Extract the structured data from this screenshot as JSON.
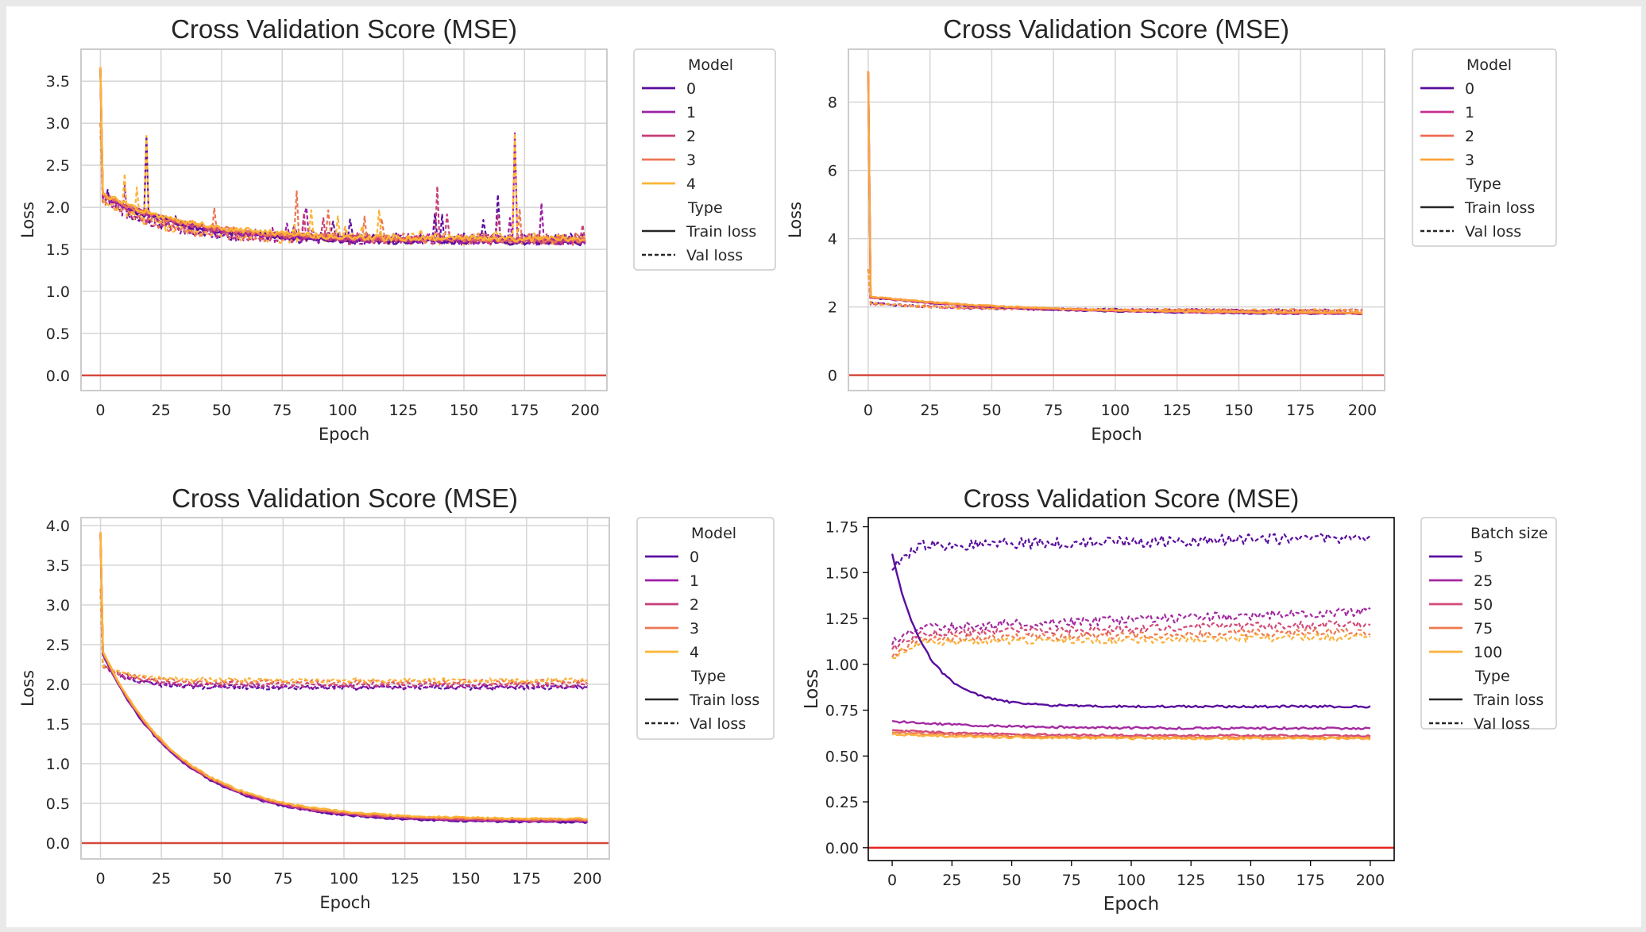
{
  "colors": {
    "page_background": "#e9e9e9",
    "panel_background": "#ffffff",
    "zero_line": "#d6483c",
    "zero_line_bright": "#e8241e",
    "grid": "#d5d5d5",
    "legend_border": "#cccccc"
  },
  "chart_data": [
    {
      "type": "line",
      "style": "seaborn-whitegrid",
      "title": "Cross Validation Score (MSE)",
      "xlabel": "Epoch",
      "ylabel": "Loss",
      "xlim": [
        -8,
        209
      ],
      "ylim": [
        -0.18,
        3.88
      ],
      "xticks": [
        0,
        25,
        50,
        75,
        100,
        125,
        150,
        175,
        200
      ],
      "yticks": [
        0.0,
        0.5,
        1.0,
        1.5,
        2.0,
        2.5,
        3.0,
        3.5
      ],
      "ytick_labels": [
        "0.0",
        "0.5",
        "1.0",
        "1.5",
        "2.0",
        "2.5",
        "3.0",
        "3.5"
      ],
      "grid": true,
      "reference_line": {
        "y": 0
      },
      "legend": {
        "placement": "outside-right",
        "hue_title": "Model",
        "hue": [
          {
            "label": "0",
            "color": "#5a0d9e"
          },
          {
            "label": "1",
            "color": "#9c1fa6"
          },
          {
            "label": "2",
            "color": "#c83e78"
          },
          {
            "label": "3",
            "color": "#ec7653"
          },
          {
            "label": "4",
            "color": "#fcb435"
          }
        ],
        "style_title": "Type",
        "styles": [
          {
            "label": "Train loss",
            "dash": "solid"
          },
          {
            "label": "Val loss",
            "dash": "dashed"
          }
        ]
      },
      "series_profiles": {
        "train": {
          "start": 3.65,
          "after_first": 2.15,
          "end": 1.6,
          "decay_epochs": 35,
          "noise": 0.035
        },
        "val": {
          "start": 3.0,
          "after_first": 2.1,
          "end": 1.62,
          "decay_epochs": 25,
          "noise": 0.07,
          "spikes": [
            [
              19,
              2.85
            ],
            [
              171,
              2.88
            ],
            [
              139,
              2.25
            ],
            [
              81,
              2.2
            ],
            [
              10,
              2.4
            ],
            [
              164,
              2.15
            ],
            [
              182,
              2.05
            ]
          ]
        }
      }
    },
    {
      "type": "line",
      "style": "seaborn-whitegrid",
      "title": "Cross Validation Score (MSE)",
      "xlabel": "Epoch",
      "ylabel": "Loss",
      "xlim": [
        -8,
        209
      ],
      "ylim": [
        -0.45,
        9.55
      ],
      "xticks": [
        0,
        25,
        50,
        75,
        100,
        125,
        150,
        175,
        200
      ],
      "yticks": [
        0,
        2,
        4,
        6,
        8
      ],
      "ytick_labels": [
        "0",
        "2",
        "4",
        "6",
        "8"
      ],
      "grid": true,
      "reference_line": {
        "y": 0
      },
      "legend": {
        "placement": "outside-right",
        "hue_title": "Model",
        "hue": [
          {
            "label": "0",
            "color": "#5a0d9e"
          },
          {
            "label": "1",
            "color": "#c72f8f"
          },
          {
            "label": "2",
            "color": "#ef6b53"
          },
          {
            "label": "3",
            "color": "#fba43a"
          }
        ],
        "style_title": "Type",
        "styles": [
          {
            "label": "Train loss",
            "dash": "solid"
          },
          {
            "label": "Val loss",
            "dash": "dashed"
          }
        ]
      },
      "series_profiles": {
        "train": {
          "start": 8.9,
          "after_first": 2.3,
          "end": 1.8,
          "decay_epochs": 60,
          "noise": 0.02
        },
        "val": {
          "start": 3.1,
          "after_first": 2.1,
          "end": 1.9,
          "decay_epochs": 40,
          "noise": 0.035,
          "spikes": []
        }
      }
    },
    {
      "type": "line",
      "style": "seaborn-whitegrid",
      "title": "Cross Validation Score (MSE)",
      "xlabel": "Epoch",
      "ylabel": "Loss",
      "xlim": [
        -8,
        209
      ],
      "ylim": [
        -0.2,
        4.1
      ],
      "xticks": [
        0,
        25,
        50,
        75,
        100,
        125,
        150,
        175,
        200
      ],
      "yticks": [
        0.0,
        0.5,
        1.0,
        1.5,
        2.0,
        2.5,
        3.0,
        3.5,
        4.0
      ],
      "ytick_labels": [
        "0.0",
        "0.5",
        "1.0",
        "1.5",
        "2.0",
        "2.5",
        "3.0",
        "3.5",
        "4.0"
      ],
      "grid": true,
      "reference_line": {
        "y": 0
      },
      "legend": {
        "placement": "outside-right",
        "hue_title": "Model",
        "hue": [
          {
            "label": "0",
            "color": "#5a0d9e"
          },
          {
            "label": "1",
            "color": "#9c1fa6"
          },
          {
            "label": "2",
            "color": "#c83e78"
          },
          {
            "label": "3",
            "color": "#ec7653"
          },
          {
            "label": "4",
            "color": "#fcb435"
          }
        ],
        "style_title": "Type",
        "styles": [
          {
            "label": "Train loss",
            "dash": "solid"
          },
          {
            "label": "Val loss",
            "dash": "dashed"
          }
        ]
      },
      "series_profiles": {
        "train": {
          "start": 3.9,
          "after_first": 2.4,
          "end": 0.28,
          "decay_epochs": 32,
          "noise": 0.012
        },
        "val": {
          "start": 3.2,
          "after_first": 2.2,
          "end": 1.97,
          "decay_epochs": 60,
          "noise": 0.03,
          "spikes": []
        },
        "val_levels": [
          1.96,
          1.97,
          2.0,
          2.03,
          2.05
        ]
      }
    },
    {
      "type": "line",
      "style": "matplotlib-default",
      "title": "Cross Validation Score (MSE)",
      "xlabel": "Epoch",
      "ylabel": "Loss",
      "xlim": [
        -10,
        210
      ],
      "ylim": [
        -0.07,
        1.8
      ],
      "xticks": [
        0,
        25,
        50,
        75,
        100,
        125,
        150,
        175,
        200
      ],
      "yticks": [
        0.0,
        0.25,
        0.5,
        0.75,
        1.0,
        1.25,
        1.5,
        1.75
      ],
      "ytick_labels": [
        "0.00",
        "0.25",
        "0.50",
        "0.75",
        "1.00",
        "1.25",
        "1.50",
        "1.75"
      ],
      "grid": false,
      "reference_line": {
        "y": 0
      },
      "legend": {
        "placement": "outside-right",
        "hue_title": "Batch size",
        "hue": [
          {
            "label": "5",
            "color": "#5a0d9e"
          },
          {
            "label": "25",
            "color": "#a32aa2"
          },
          {
            "label": "50",
            "color": "#d34a78"
          },
          {
            "label": "75",
            "color": "#ee7a50"
          },
          {
            "label": "100",
            "color": "#fbb13c"
          }
        ],
        "style_title": "Type",
        "styles": [
          {
            "label": "Train loss",
            "dash": "solid"
          },
          {
            "label": "Val loss",
            "dash": "dashed"
          }
        ]
      },
      "series_profiles": {
        "train_levels": [
          {
            "start": 1.6,
            "end": 0.77,
            "decay_epochs": 18
          },
          {
            "start": 0.69,
            "end": 0.65,
            "decay_epochs": 40
          },
          {
            "start": 0.64,
            "end": 0.61,
            "decay_epochs": 40
          },
          {
            "start": 0.63,
            "end": 0.6,
            "decay_epochs": 40
          },
          {
            "start": 0.62,
            "end": 0.595,
            "decay_epochs": 40
          }
        ],
        "val_levels": [
          {
            "start": 1.52,
            "level": 1.65,
            "end": 1.69,
            "noise": 0.03
          },
          {
            "start": 1.12,
            "level": 1.2,
            "end": 1.29,
            "noise": 0.025
          },
          {
            "start": 1.08,
            "level": 1.17,
            "end": 1.22,
            "noise": 0.022
          },
          {
            "start": 1.05,
            "level": 1.14,
            "end": 1.18,
            "noise": 0.02
          },
          {
            "start": 1.04,
            "level": 1.12,
            "end": 1.15,
            "noise": 0.02
          }
        ]
      }
    }
  ]
}
